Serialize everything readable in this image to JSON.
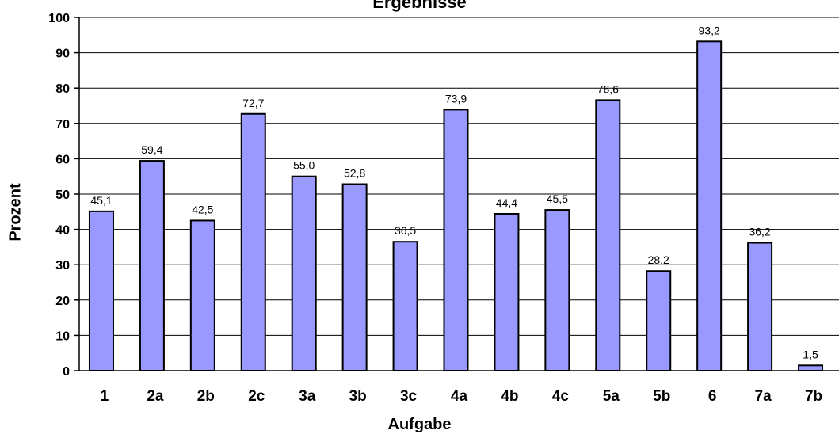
{
  "chart_data": {
    "type": "bar",
    "title": "Ergebnisse",
    "xlabel": "Aufgabe",
    "ylabel": "Prozent",
    "categories": [
      "1",
      "2a",
      "2b",
      "2c",
      "3a",
      "3b",
      "3c",
      "4a",
      "4b",
      "4c",
      "5a",
      "5b",
      "6",
      "7a",
      "7b"
    ],
    "values": [
      45.1,
      59.4,
      42.5,
      72.7,
      55.0,
      52.8,
      36.5,
      73.9,
      44.4,
      45.5,
      76.6,
      28.2,
      93.2,
      36.2,
      1.5
    ],
    "value_labels": [
      "45,1",
      "59,4",
      "42,5",
      "72,7",
      "55,0",
      "52,8",
      "36,5",
      "73,9",
      "44,4",
      "45,5",
      "76,6",
      "28,2",
      "93,2",
      "36,2",
      "1,5"
    ],
    "yticks": [
      "0",
      "10",
      "20",
      "30",
      "40",
      "50",
      "60",
      "70",
      "80",
      "90",
      "100"
    ],
    "ylim": [
      0,
      100
    ],
    "grid": true,
    "colors": {
      "bar": "#9999ff",
      "bar_stroke": "#000000",
      "grid": "#000000"
    }
  }
}
